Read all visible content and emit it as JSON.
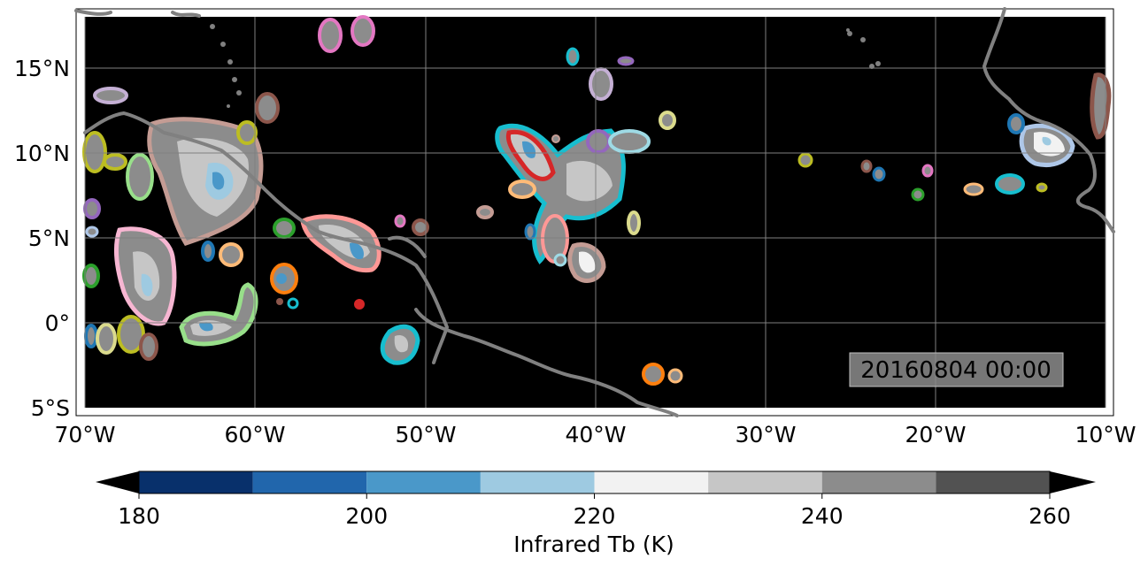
{
  "map": {
    "lon_ticks": [
      "70°W",
      "60°W",
      "50°W",
      "40°W",
      "30°W",
      "20°W",
      "10°W"
    ],
    "lat_ticks": [
      "15°N",
      "10°N",
      "5°N",
      "0°",
      "5°S"
    ],
    "timestamp": "20160804 00:00",
    "background_color": "#000000",
    "coastline_color": "#808080",
    "gridline_color": "#808080"
  },
  "colorbar": {
    "label": "Infrared Tb (K)",
    "tick_labels": [
      "180",
      "200",
      "220",
      "240",
      "260"
    ],
    "levels": [
      180,
      190,
      200,
      210,
      220,
      230,
      240,
      250,
      260
    ],
    "colors": [
      "#08306b",
      "#2166ac",
      "#4a98c9",
      "#9ecae1",
      "#f2f2f2",
      "#c6c6c6",
      "#8c8c8c",
      "#525252"
    ],
    "extend": "both"
  },
  "outline_colors": [
    "#e377c2",
    "#c5b0d5",
    "#8c564b",
    "#bcbd22",
    "#98df8a",
    "#9467bd",
    "#aec7e8",
    "#2ca02c",
    "#ff9896",
    "#1f77b4",
    "#ffbb78",
    "#ff7f0e",
    "#d62728",
    "#17becf",
    "#9edae5",
    "#dbdb8d",
    "#c49c94",
    "#f7b6d2"
  ]
}
